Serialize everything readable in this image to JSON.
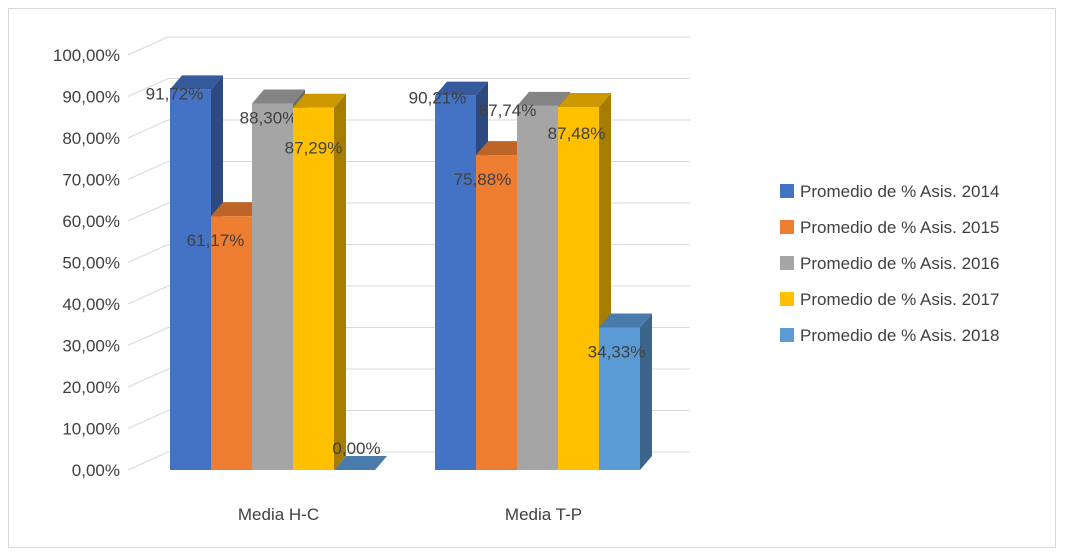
{
  "chart_data": {
    "type": "bar",
    "three_d": true,
    "categories": [
      "Media H-C",
      "Media T-P"
    ],
    "series": [
      {
        "name": "Promedio de % Asis. 2014",
        "values": [
          0.9172,
          0.9021
        ],
        "labels": [
          "91,72%",
          "90,21%"
        ],
        "color": "#4472C4"
      },
      {
        "name": "Promedio de % Asis. 2015",
        "values": [
          0.6117,
          0.7588
        ],
        "labels": [
          "61,17%",
          "75,88%"
        ],
        "color": "#ED7D31"
      },
      {
        "name": "Promedio de % Asis. 2016",
        "values": [
          0.883,
          0.8774
        ],
        "labels": [
          "88,30%",
          "87,74%"
        ],
        "color": "#A5A5A5"
      },
      {
        "name": "Promedio de % Asis. 2017",
        "values": [
          0.8729,
          0.8748
        ],
        "labels": [
          "87,29%",
          "87,48%"
        ],
        "color": "#FFC000"
      },
      {
        "name": "Promedio de % Asis. 2018",
        "values": [
          0.0,
          0.3433
        ],
        "labels": [
          "0,00%",
          "34,33%"
        ],
        "color": "#5B9BD5"
      }
    ],
    "yticks": [
      "0,00%",
      "10,00%",
      "20,00%",
      "30,00%",
      "40,00%",
      "50,00%",
      "60,00%",
      "70,00%",
      "80,00%",
      "90,00%",
      "100,00%"
    ],
    "ylim": [
      0,
      1
    ],
    "grid": true,
    "legend_position": "right"
  }
}
